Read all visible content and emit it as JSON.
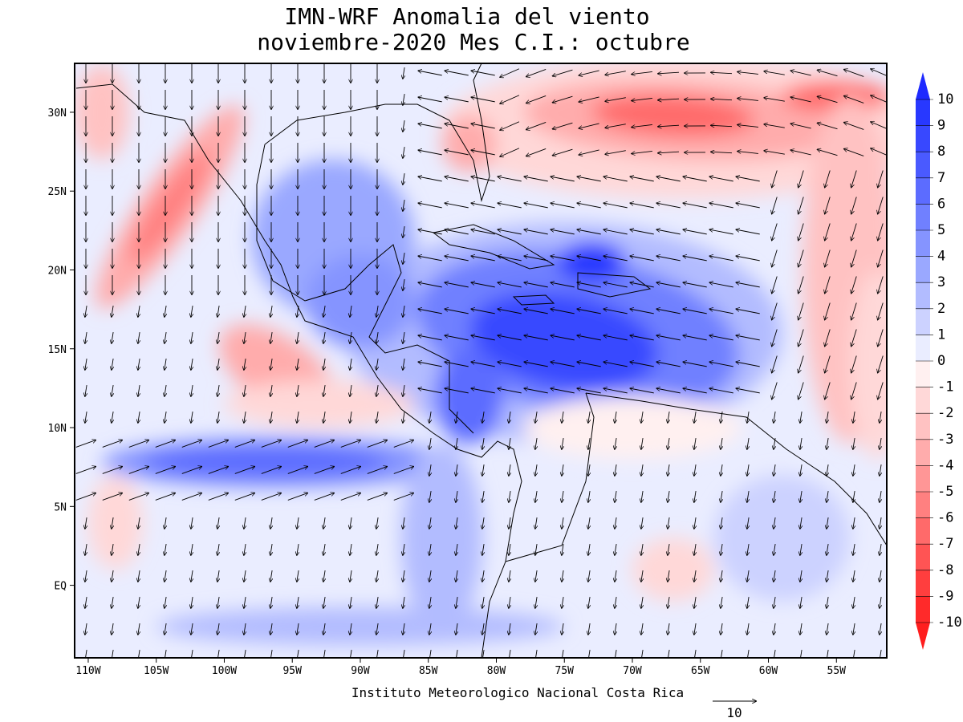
{
  "map": {
    "title": "IMN-WRF Anomalia del viento",
    "subtitle": "noviembre-2020 Mes C.I.: octubre",
    "footer": "Instituto Meteorologico Nacional Costa Rica",
    "vector_reference": "10",
    "lon_range": [
      -111,
      -51.3
    ],
    "lat_range": [
      -4.6,
      33.1
    ],
    "lon_ticks": [
      {
        "value": -110,
        "label": "110W"
      },
      {
        "value": -105,
        "label": "105W"
      },
      {
        "value": -100,
        "label": "100W"
      },
      {
        "value": -95,
        "label": "95W"
      },
      {
        "value": -90,
        "label": "90W"
      },
      {
        "value": -85,
        "label": "85W"
      },
      {
        "value": -80,
        "label": "80W"
      },
      {
        "value": -75,
        "label": "75W"
      },
      {
        "value": -70,
        "label": "70W"
      },
      {
        "value": -65,
        "label": "65W"
      },
      {
        "value": -60,
        "label": "60W"
      },
      {
        "value": -55,
        "label": "55W"
      }
    ],
    "lat_ticks": [
      {
        "value": 30,
        "label": "30N"
      },
      {
        "value": 25,
        "label": "25N"
      },
      {
        "value": 20,
        "label": "20N"
      },
      {
        "value": 15,
        "label": "15N"
      },
      {
        "value": 10,
        "label": "10N"
      },
      {
        "value": 5,
        "label": "5N"
      },
      {
        "value": 0,
        "label": "EQ"
      }
    ],
    "colorbar": {
      "levels": [
        10,
        9,
        8,
        7,
        6,
        5,
        4,
        3,
        2,
        1,
        0,
        -1,
        -2,
        -3,
        -4,
        -5,
        -6,
        -7,
        -8,
        -9,
        -10
      ],
      "colors": [
        "#1e2aff",
        "#2838ff",
        "#3848ff",
        "#4a5aff",
        "#5c6cff",
        "#7080ff",
        "#8594ff",
        "#9aa8ff",
        "#b2bcff",
        "#ccd2ff",
        "#eaedff",
        "#fff0f0",
        "#ffd8d8",
        "#ffc2c2",
        "#ffacac",
        "#ff9696",
        "#ff8080",
        "#ff6a6a",
        "#ff5454",
        "#ff3e3e",
        "#ff2a2a",
        "#ff1e1e"
      ]
    }
  }
}
